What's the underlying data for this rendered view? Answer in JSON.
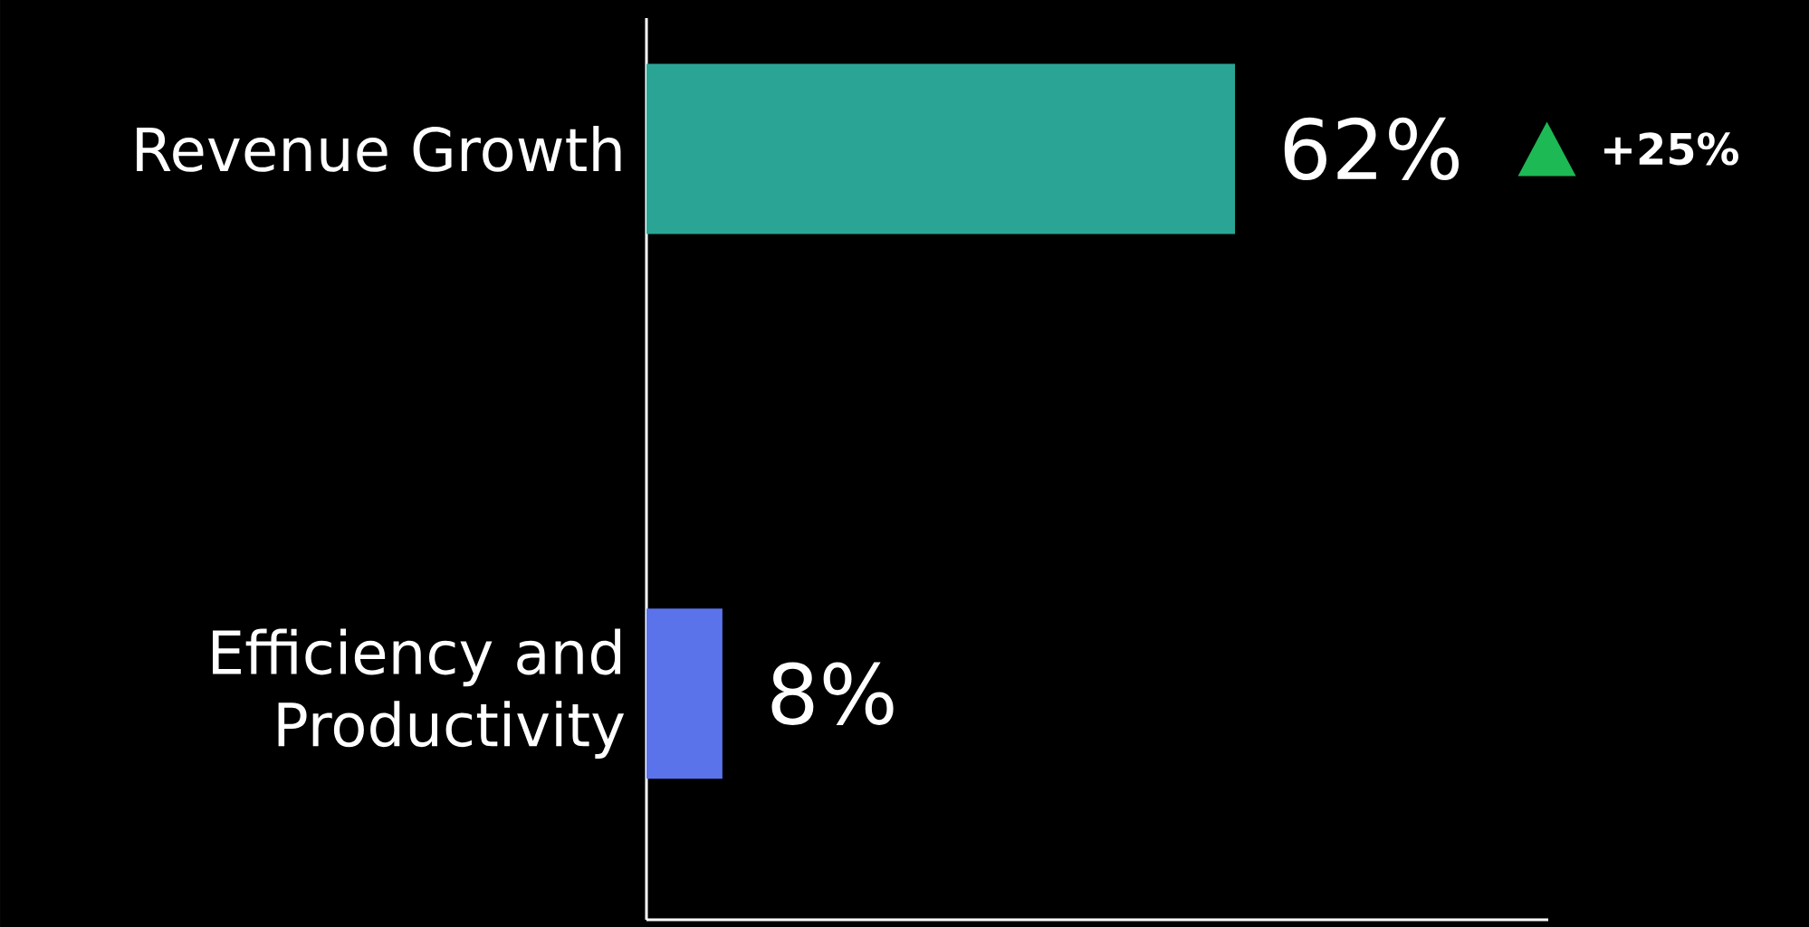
{
  "chart_data": {
    "type": "bar",
    "orientation": "horizontal",
    "categories": [
      "Revenue Growth",
      "Efficiency and Productivity"
    ],
    "values": [
      62,
      8
    ],
    "colors": [
      "#2aa595",
      "#5a72ea"
    ],
    "value_labels": [
      "62%",
      "8%"
    ],
    "xlim": [
      0,
      95
    ],
    "annotations": [
      "+25%"
    ]
  }
}
